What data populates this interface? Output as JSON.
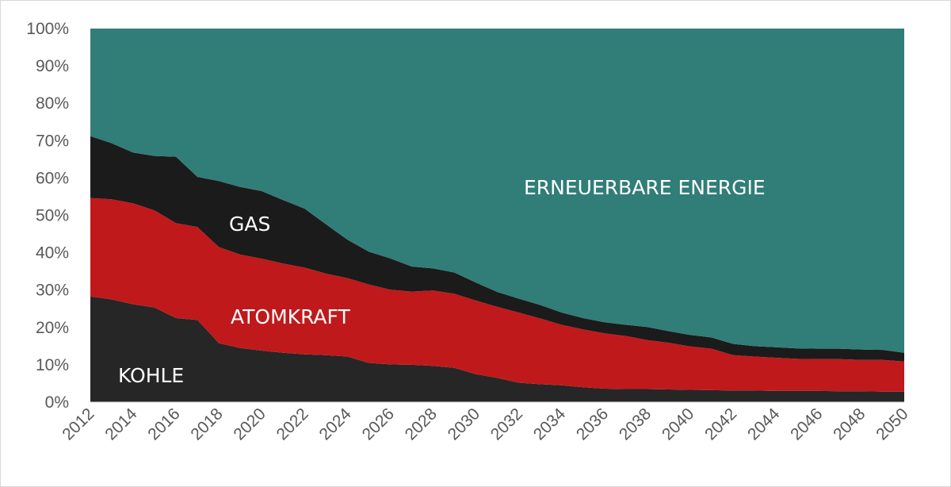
{
  "chart_data": {
    "type": "area",
    "stacked": true,
    "normalized_percent": true,
    "x": [
      2012,
      2013,
      2014,
      2015,
      2016,
      2017,
      2018,
      2019,
      2020,
      2021,
      2022,
      2023,
      2024,
      2025,
      2026,
      2027,
      2028,
      2029,
      2030,
      2031,
      2032,
      2033,
      2034,
      2035,
      2036,
      2037,
      2038,
      2039,
      2040,
      2041,
      2042,
      2043,
      2044,
      2045,
      2046,
      2047,
      2048,
      2049,
      2050
    ],
    "x_tick_labels": [
      "2012",
      "2014",
      "2016",
      "2018",
      "2020",
      "2022",
      "2024",
      "2026",
      "2028",
      "2030",
      "2032",
      "2034",
      "2036",
      "2038",
      "2040",
      "2042",
      "2044",
      "2046",
      "2048",
      "2050"
    ],
    "y_tick_labels": [
      "0%",
      "10%",
      "20%",
      "30%",
      "40%",
      "50%",
      "60%",
      "70%",
      "80%",
      "90%",
      "100%"
    ],
    "ylim": [
      0,
      100
    ],
    "grid": false,
    "legend": "none (labels placed inside areas)",
    "series": [
      {
        "name": "KOHLE",
        "color": "#262626",
        "values": [
          28.3,
          27.5,
          26.2,
          25.3,
          22.5,
          22.0,
          15.8,
          14.5,
          13.8,
          13.2,
          12.8,
          12.6,
          12.2,
          10.5,
          10.1,
          10.0,
          9.7,
          9.2,
          7.5,
          6.5,
          5.2,
          4.8,
          4.5,
          4.0,
          3.6,
          3.5,
          3.5,
          3.4,
          3.3,
          3.2,
          3.1,
          3.1,
          3.0,
          3.0,
          3.0,
          2.9,
          2.9,
          2.8,
          2.8
        ]
      },
      {
        "name": "ATOMKRAFT",
        "color": "#C0191B",
        "values": [
          26.3,
          26.8,
          27.0,
          26.0,
          25.4,
          24.9,
          25.7,
          25.0,
          24.6,
          23.9,
          23.2,
          21.8,
          21.0,
          21.0,
          20.0,
          19.6,
          20.2,
          19.8,
          19.7,
          19.0,
          18.8,
          17.6,
          16.2,
          15.5,
          14.8,
          14.2,
          13.1,
          12.5,
          11.6,
          11.1,
          9.5,
          9.1,
          8.9,
          8.6,
          8.5,
          8.6,
          8.4,
          8.5,
          8.1
        ]
      },
      {
        "name": "GAS",
        "color": "#1B1B1B",
        "values": [
          16.6,
          15.0,
          13.6,
          14.6,
          17.8,
          13.4,
          17.7,
          18.1,
          18.1,
          17.0,
          15.8,
          13.2,
          10.3,
          8.8,
          8.4,
          6.7,
          5.9,
          5.7,
          4.8,
          4.0,
          3.7,
          3.6,
          3.3,
          3.0,
          3.0,
          3.0,
          3.5,
          3.1,
          3.1,
          3.0,
          3.0,
          2.8,
          2.8,
          2.8,
          2.8,
          2.8,
          2.8,
          2.7,
          2.3
        ]
      },
      {
        "name": "ERNEUERBARE ENERGIE",
        "color": "#317D78",
        "values": [
          28.8,
          30.7,
          33.2,
          34.1,
          34.3,
          39.7,
          40.8,
          42.4,
          43.5,
          45.9,
          48.2,
          52.4,
          56.5,
          59.7,
          61.5,
          63.7,
          64.2,
          65.3,
          68.0,
          70.5,
          72.3,
          74.0,
          76.0,
          77.5,
          78.6,
          79.3,
          79.9,
          81.0,
          82.0,
          82.7,
          84.4,
          85.0,
          85.3,
          85.6,
          85.7,
          85.7,
          85.9,
          86.0,
          86.8
        ]
      }
    ]
  }
}
